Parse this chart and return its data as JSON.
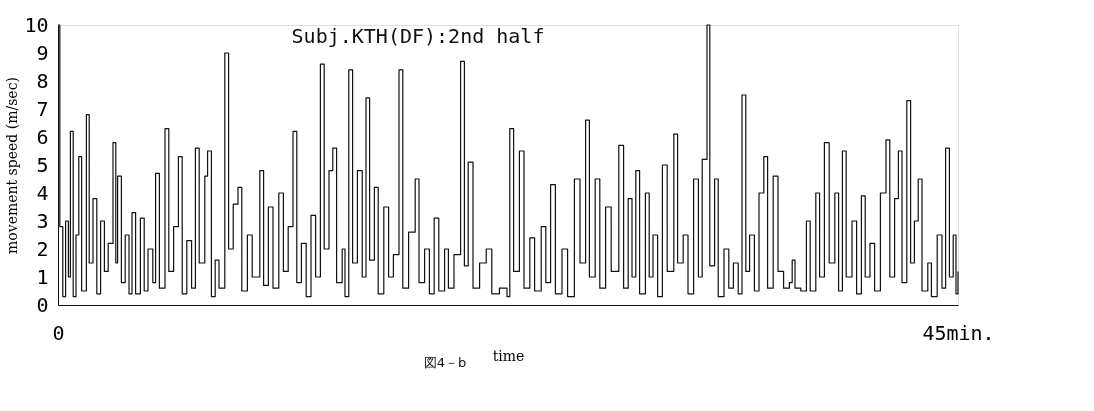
{
  "chart_data": {
    "type": "step",
    "title": "Subj.KTH(DF):2nd half",
    "xlabel": "time",
    "ylabel": "movement speed (m/sec)",
    "annotations": [
      "図4－b"
    ],
    "xlim": [
      0,
      45
    ],
    "xticks": [
      0,
      {
        "value": 45,
        "label": "45min."
      }
    ],
    "ylim": [
      0,
      10
    ],
    "yticks": [
      0,
      1,
      2,
      3,
      4,
      5,
      6,
      7,
      8,
      9,
      10
    ],
    "grid": false,
    "marker": "none",
    "line_style": "solid",
    "x": [
      0,
      0.09,
      0.24,
      0.38,
      0.52,
      0.62,
      0.76,
      0.9,
      1.04,
      1.18,
      1.42,
      1.56,
      1.75,
      1.94,
      2.13,
      2.32,
      2.51,
      2.75,
      2.89,
      2.98,
      3.17,
      3.36,
      3.55,
      3.7,
      3.88,
      4.12,
      4.31,
      4.5,
      4.74,
      4.88,
      5.07,
      5.35,
      5.54,
      5.78,
      6.02,
      6.21,
      6.44,
      6.68,
      6.87,
      7.06,
      7.34,
      7.48,
      7.67,
      7.86,
      8.05,
      8.34,
      8.53,
      8.76,
      9.0,
      9.19,
      9.47,
      9.71,
      10.09,
      10.28,
      10.52,
      10.75,
      11.04,
      11.27,
      11.51,
      11.75,
      11.94,
      12.17,
      12.41,
      12.65,
      12.88,
      13.12,
      13.31,
      13.55,
      13.74,
      13.93,
      14.21,
      14.35,
      14.54,
      14.73,
      14.97,
      15.21,
      15.4,
      15.58,
      15.82,
      16.01,
      16.29,
      16.53,
      16.77,
      17.05,
      17.24,
      17.53,
      17.86,
      18.05,
      18.33,
      18.57,
      18.81,
      19.04,
      19.33,
      19.52,
      19.8,
      20.13,
      20.32,
      20.51,
      20.75,
      21.08,
      21.41,
      21.69,
      22.07,
      22.45,
      22.59,
      22.78,
      23.07,
      23.3,
      23.59,
      23.83,
      24.16,
      24.39,
      24.63,
      24.87,
      25.2,
      25.48,
      25.82,
      26.1,
      26.38,
      26.57,
      26.86,
      27.09,
      27.38,
      27.66,
      28.04,
      28.28,
      28.51,
      28.7,
      28.89,
      29.08,
      29.37,
      29.56,
      29.75,
      29.98,
      30.22,
      30.46,
      30.79,
      30.98,
      31.26,
      31.5,
      31.78,
      32.02,
      32.21,
      32.45,
      32.59,
      32.83,
      33.01,
      33.3,
      33.54,
      33.77,
      34.01,
      34.2,
      34.39,
      34.58,
      34.82,
      35.05,
      35.29,
      35.48,
      35.76,
      36.0,
      36.28,
      36.57,
      36.71,
      36.85,
      37.14,
      37.42,
      37.61,
      37.89,
      38.08,
      38.32,
      38.56,
      38.84,
      39.03,
      39.22,
      39.41,
      39.7,
      39.93,
      40.17,
      40.36,
      40.6,
      40.83,
      41.12,
      41.4,
      41.59,
      41.83,
      42.02,
      42.2,
      42.44,
      42.63,
      42.82,
      43.01,
      43.2,
      43.49,
      43.67,
      43.96,
      44.2,
      44.38,
      44.57,
      44.76,
      44.9,
      45
    ],
    "series": [
      {
        "color": "#111111",
        "values": [
          10,
          2.8,
          0.3,
          3.0,
          1.0,
          6.2,
          0.3,
          2.5,
          5.3,
          0.5,
          6.8,
          1.5,
          3.8,
          0.4,
          3.0,
          1.2,
          2.2,
          5.8,
          1.5,
          4.6,
          0.8,
          2.5,
          0.4,
          3.3,
          0.4,
          3.1,
          0.5,
          2.0,
          0.8,
          4.7,
          0.6,
          6.3,
          1.2,
          2.8,
          5.3,
          0.4,
          2.3,
          0.6,
          5.6,
          1.5,
          4.6,
          5.5,
          0.3,
          1.6,
          0.6,
          9.0,
          2.0,
          3.6,
          4.2,
          0.5,
          2.5,
          1.0,
          4.8,
          0.7,
          3.5,
          0.6,
          4.0,
          1.2,
          2.8,
          6.2,
          0.8,
          2.2,
          0.3,
          3.2,
          1.0,
          8.6,
          2.0,
          4.8,
          5.6,
          0.8,
          2.0,
          0.3,
          8.4,
          1.5,
          4.8,
          1.0,
          7.4,
          1.6,
          4.2,
          0.4,
          3.5,
          1.0,
          1.8,
          8.4,
          0.6,
          2.6,
          4.5,
          0.8,
          2.0,
          0.4,
          3.1,
          0.5,
          2.0,
          0.6,
          1.8,
          8.7,
          1.4,
          5.1,
          0.6,
          1.5,
          2.0,
          0.4,
          0.6,
          0.3,
          6.3,
          1.2,
          5.5,
          0.6,
          2.4,
          0.5,
          2.8,
          0.8,
          4.3,
          0.4,
          2.0,
          0.3,
          4.5,
          1.5,
          6.6,
          1.0,
          4.5,
          0.6,
          3.5,
          1.2,
          5.7,
          0.6,
          3.8,
          1.0,
          4.8,
          0.4,
          4.0,
          1.0,
          2.5,
          0.3,
          5.0,
          1.2,
          6.1,
          1.5,
          2.5,
          0.4,
          4.5,
          1.0,
          5.2,
          10.0,
          1.4,
          4.5,
          0.3,
          2.0,
          0.6,
          1.5,
          0.4,
          7.5,
          1.2,
          2.5,
          0.5,
          4.0,
          5.3,
          0.6,
          4.6,
          1.2,
          0.6,
          0.8,
          1.6,
          0.6,
          0.5,
          3.0,
          0.5,
          4.0,
          1.0,
          5.8,
          1.5,
          4.0,
          0.5,
          5.5,
          1.0,
          3.0,
          0.4,
          3.9,
          1.0,
          2.2,
          0.5,
          4.0,
          5.9,
          1.0,
          3.8,
          5.5,
          0.8,
          7.3,
          1.5,
          3.0,
          4.5,
          0.5,
          1.5,
          0.3,
          2.5,
          0.6,
          5.6,
          1.0,
          2.5,
          0.4,
          1.2
        ]
      }
    ]
  }
}
